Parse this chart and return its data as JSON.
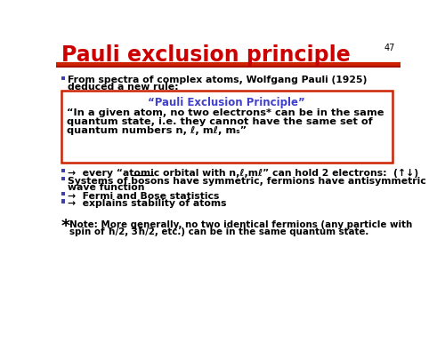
{
  "title": "Pauli exclusion principle",
  "slide_number": "47",
  "title_color": "#cc0000",
  "title_fontsize": 17,
  "bg_color": "#ffffff",
  "header_line_color1": "#cc2200",
  "header_line_color2": "#aa1100",
  "bullet_color": "#4040aa",
  "text_color": "#000000",
  "box_border_color": "#cc2200",
  "box_title_color": "#4040cc",
  "box_title": "“Pauli Exclusion Principle”",
  "box_text1": "“In a given atom, no two electrons* can be in the same",
  "box_text2": "quantum state, i.e. they cannot have the same set of",
  "box_text3": "quantum numbers n, ℓ, mℓ, mₛ”",
  "intro_line1": "From spectra of complex atoms, Wolfgang Pauli (1925)",
  "intro_line2": "deduced a new rule:",
  "bullet1": "→  every “atomic orbital with n,ℓ,mℓ” can hold 2 electrons:  (↑↓)",
  "bullet2_line1": "Systems of bosons have symmetric, fermions have antisymmetric",
  "bullet2_line2": "wave function",
  "bullet3": "→  Fermi and Bose statistics",
  "bullet4": "→  explains stability of atoms",
  "footnote1": "Note: More generally, no two identical fermions (any particle with",
  "footnote2": "spin of ħ/2, 3ħ/2, etc.) can be in the same quantum state."
}
